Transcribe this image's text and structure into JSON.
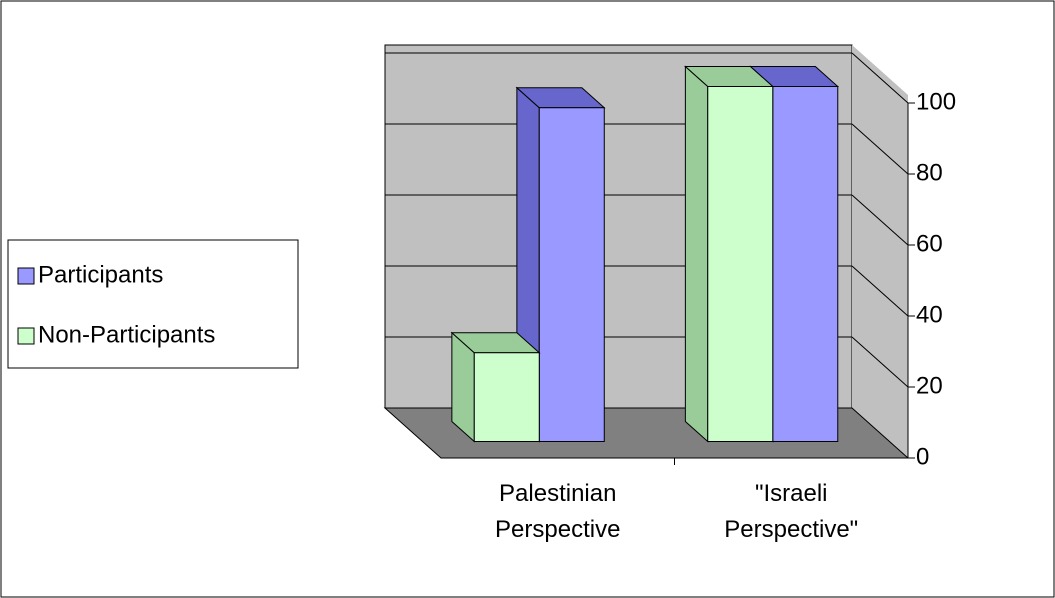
{
  "chart_data": {
    "type": "bar3d",
    "categories": [
      "Palestinian Perspective",
      "\"Israeli Perspective\""
    ],
    "series": [
      {
        "name": "Participants",
        "color": "#9999ff",
        "side": "#6666cc",
        "values": [
          94,
          100
        ]
      },
      {
        "name": "Non-Participants",
        "color": "#ccffcc",
        "side": "#99cc99",
        "values": [
          25,
          100
        ]
      }
    ],
    "ylim": [
      0,
      100
    ],
    "yticks": [
      0,
      20,
      40,
      60,
      80,
      100
    ],
    "grid": true,
    "legend": "left"
  }
}
